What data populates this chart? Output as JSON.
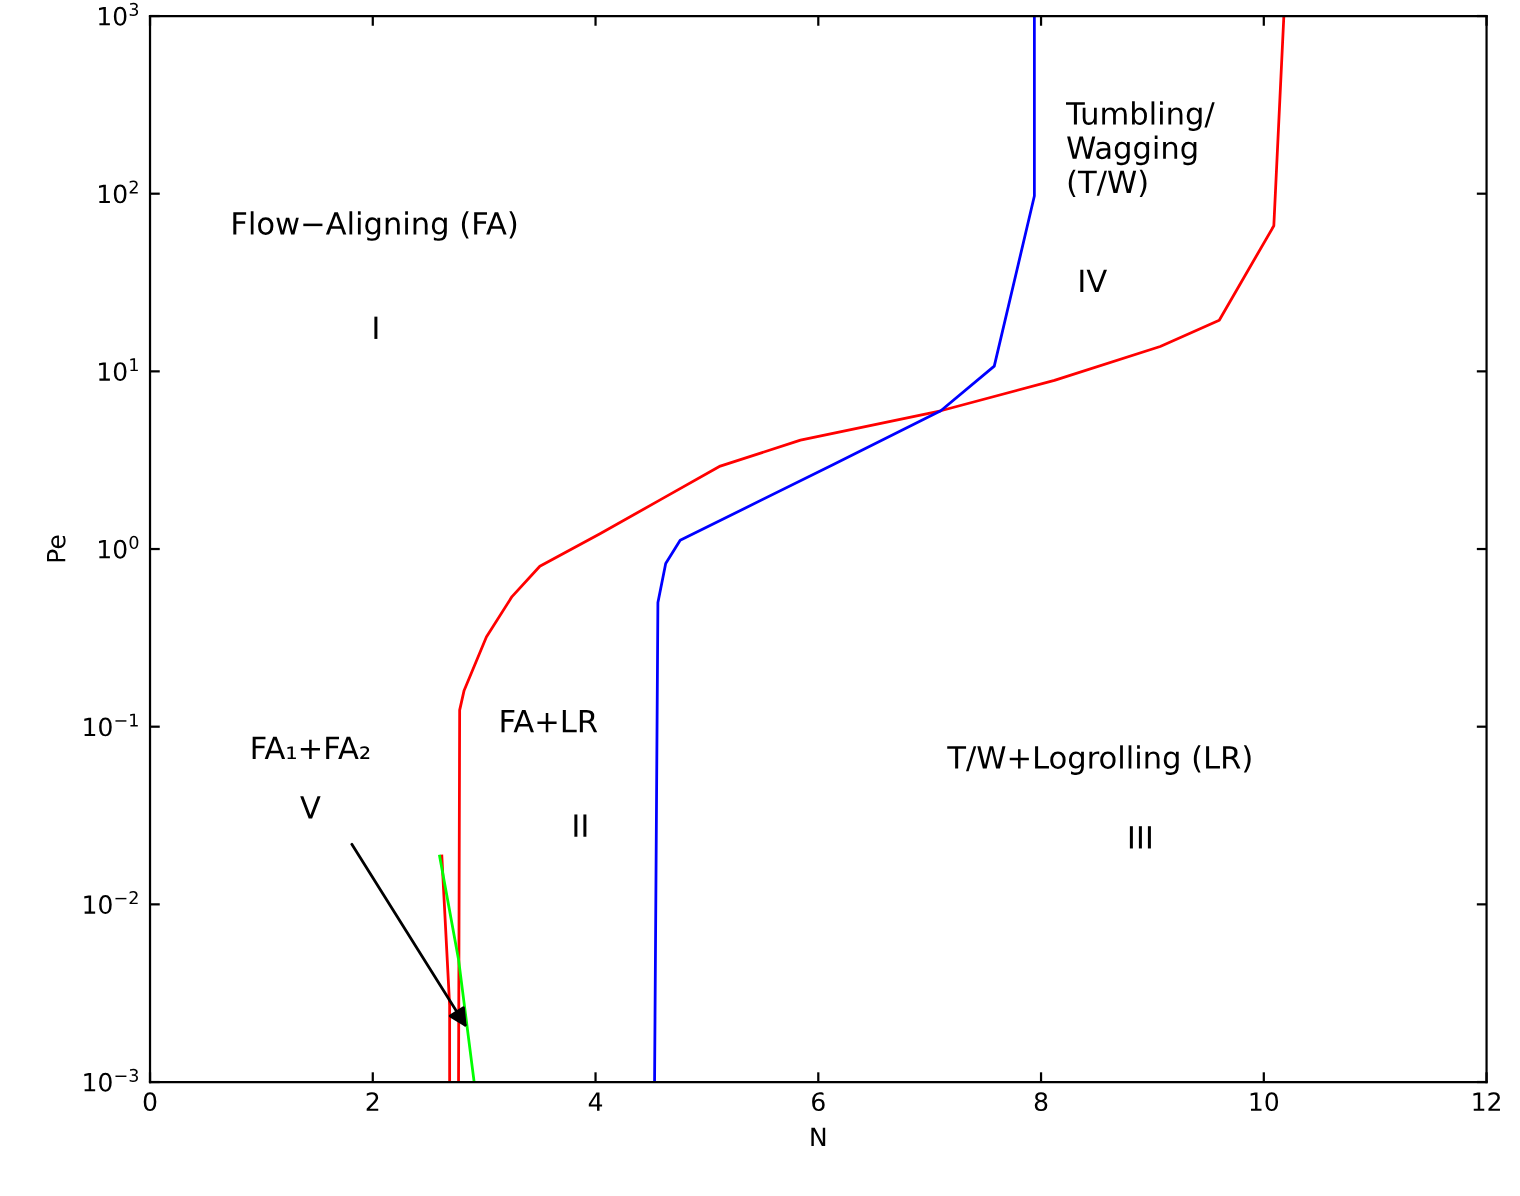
{
  "chart_data": {
    "type": "line",
    "xlabel": "N",
    "ylabel": "Pe",
    "log": "y",
    "grid": false,
    "legend": false,
    "xlim": [
      0,
      12
    ],
    "xticks": [
      0,
      2,
      4,
      6,
      8,
      10,
      12
    ],
    "ylim": [
      0.001,
      1000
    ],
    "yticks": [
      {
        "value": 0.001,
        "label": "10$^{−3}$"
      },
      {
        "value": 0.01,
        "label": "10$^{−2}$"
      },
      {
        "value": 0.1,
        "label": "10$^{−1}$"
      },
      {
        "value": 1,
        "label": "10$^{0}$"
      },
      {
        "value": 10,
        "label": "10$^{1}$"
      },
      {
        "value": 100,
        "label": "10$^{2}$"
      },
      {
        "value": 1000,
        "label": "10$^{3}$"
      }
    ],
    "series": [
      {
        "color": "#ff0000",
        "x": [
          2.77,
          2.78,
          2.82,
          3.02,
          3.25,
          3.5,
          4.04,
          4.58,
          5.12,
          5.84,
          7.1,
          8.12,
          9.07,
          9.6,
          10.09,
          10.18
        ],
        "values": [
          0.001,
          0.124,
          0.16,
          0.32,
          0.54,
          0.8,
          1.22,
          1.89,
          2.93,
          4.1,
          6.0,
          8.9,
          13.8,
          19.4,
          66,
          1000
        ]
      },
      {
        "color": "#0000ff",
        "x": [
          4.53,
          4.56,
          4.63,
          4.76,
          6.14,
          7.1,
          7.58,
          7.94,
          7.94
        ],
        "values": [
          0.001,
          0.5,
          0.83,
          1.12,
          3.0,
          6.0,
          10.7,
          97,
          1000
        ]
      },
      {
        "color": "#ff0000",
        "x": [
          2.62,
          2.69,
          2.69
        ],
        "values": [
          0.0187,
          0.0027,
          0.001
        ]
      },
      {
        "color": "#00ff00",
        "x": [
          2.6,
          2.77,
          2.91
        ],
        "values": [
          0.0187,
          0.0049,
          0.001
        ]
      }
    ],
    "annotations": [
      "Flow−Aligning (FA)",
      "I",
      "Tumbling/\nWagging\n(T/W)",
      "IV",
      "FA+LR",
      "II",
      "T/W+Logrolling (LR)",
      "III",
      "FA₁+FA₂",
      "V"
    ]
  }
}
